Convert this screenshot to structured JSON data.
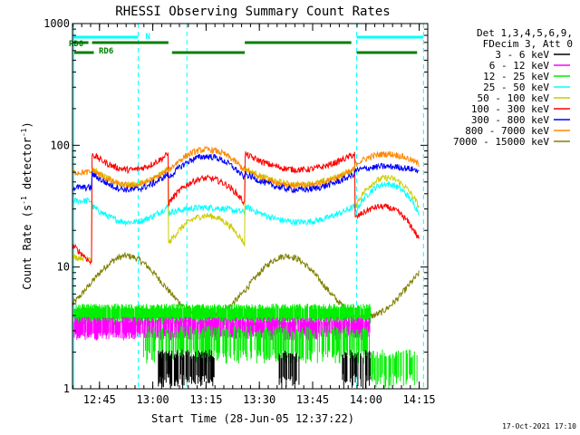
{
  "chart_data": {
    "type": "line",
    "title": "RHESSI Observing Summary Count Rates",
    "xlabel": "Start Time (28-Jun-05 12:37:22)",
    "ylabel_main": "Count Rate (s",
    "ylabel_sup1": "-1",
    "ylabel_mid": " detector",
    "ylabel_sup2": "-1",
    "ylabel_end": ")",
    "yscale": "log",
    "ylim": [
      1,
      1000
    ],
    "xlim_min": [
      0,
      100
    ],
    "xticks": [
      {
        "label": "12:45",
        "value": 7.6
      },
      {
        "label": "13:00",
        "value": 22.6
      },
      {
        "label": "13:15",
        "value": 37.6
      },
      {
        "label": "13:30",
        "value": 52.6
      },
      {
        "label": "13:45",
        "value": 67.6
      },
      {
        "label": "14:00",
        "value": 82.6
      },
      {
        "label": "14:15",
        "value": 97.6
      }
    ],
    "yticks": [
      {
        "label": "1",
        "value": 1
      },
      {
        "label": "10",
        "value": 10
      },
      {
        "label": "100",
        "value": 100
      },
      {
        "label": "1000",
        "value": 1000
      }
    ],
    "legend_header": [
      "Det 1,3,4,5,6,9,",
      "FDecim 3, Att 0"
    ],
    "series": [
      {
        "name": "3 - 6 keV",
        "color": "#000000"
      },
      {
        "name": "6 - 12 keV",
        "color": "#ff00ff"
      },
      {
        "name": "12 - 25 keV",
        "color": "#00ee00"
      },
      {
        "name": "25 - 50 keV",
        "color": "#00ffff"
      },
      {
        "name": "50 - 100 keV",
        "color": "#cccc00"
      },
      {
        "name": "100 - 300 keV",
        "color": "#ff0000"
      },
      {
        "name": "300 - 800 keV",
        "color": "#0000ff"
      },
      {
        "name": "800 - 7000 keV",
        "color": "#ff8800"
      },
      {
        "name": "7000 - 15000 keV",
        "color": "#808000"
      }
    ],
    "markers": {
      "saa_label": "N",
      "rd0_label": "RD0",
      "rd6_label": "RD6"
    },
    "legend_placement": "right",
    "grid": false
  },
  "footer_date": "17-Oct-2021 17:10"
}
